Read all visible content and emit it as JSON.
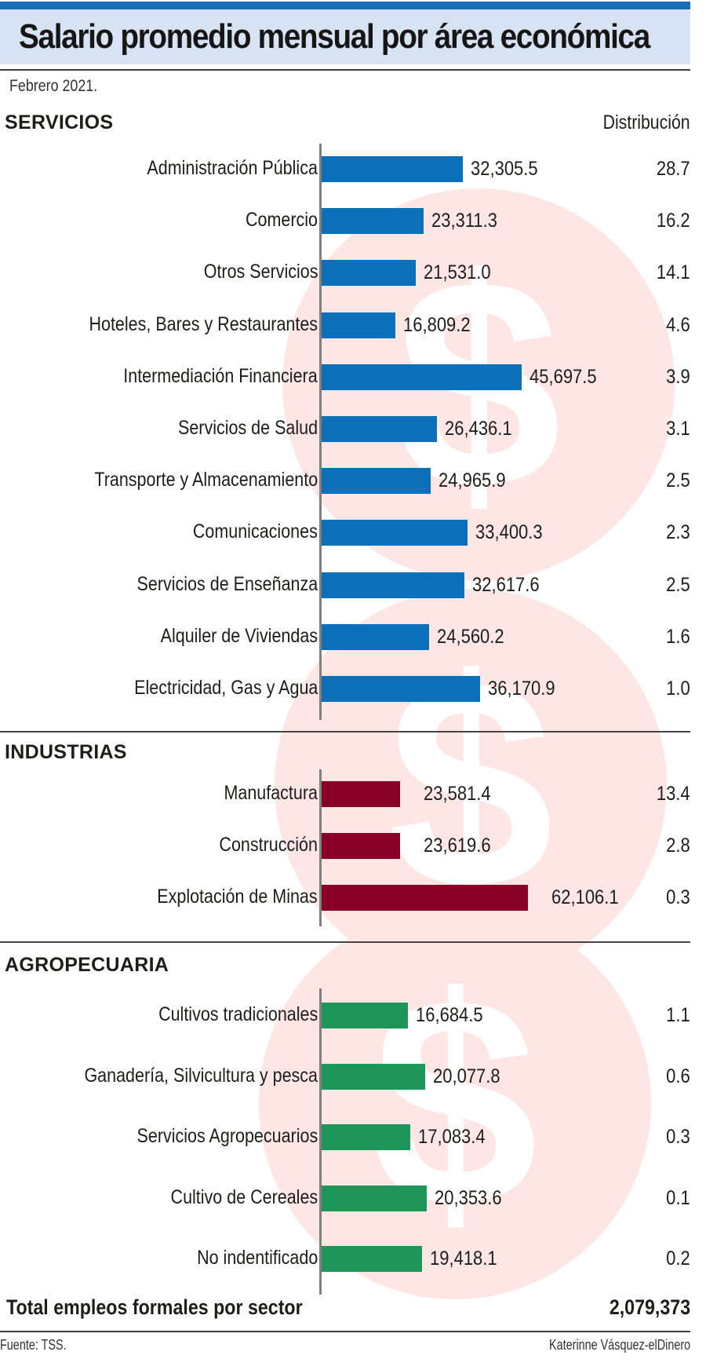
{
  "header": {
    "title": "Salario promedio mensual por área económica",
    "subtitle": "Febrero 2021.",
    "distribution_header": "Distribución"
  },
  "colors": {
    "servicios": "#0b6fba",
    "industrias": "#870025",
    "agropecuaria": "#1e9659",
    "title_band": "#d7e3f3",
    "top_stripe": "#1a70b8",
    "watermark": "#fde6e3"
  },
  "chart_data": {
    "type": "bar",
    "orientation": "horizontal",
    "title": "Salario promedio mensual por área económica",
    "subtitle": "Febrero 2021.",
    "value_label": "Salario promedio mensual",
    "extra_column_label": "Distribución",
    "groups": [
      {
        "name": "SERVICIOS",
        "color": "#0b6fba",
        "categories": [
          "Administración Pública",
          "Comercio",
          "Otros Servicios",
          "Hoteles, Bares y Restaurantes",
          "Intermediación Financiera",
          "Servicios de Salud",
          "Transporte y Almacenamiento",
          "Comunicaciones",
          "Servicios de Enseñanza",
          "Alquiler de Viviendas",
          "Electricidad, Gas y Agua"
        ],
        "values": [
          32305.5,
          23311.3,
          21531.0,
          16809.2,
          45697.5,
          26436.1,
          24965.9,
          33400.3,
          32617.6,
          24560.2,
          36170.9
        ],
        "value_labels": [
          "32,305.5",
          "23,311.3",
          "21,531.0",
          "16,809.2",
          "45,697.5",
          "26,436.1",
          "24,965.9",
          "33,400.3",
          "32,617.6",
          "24,560.2",
          "36,170.9"
        ],
        "distribution": [
          "28.7",
          "16.2",
          "14.1",
          "4.6",
          "3.9",
          "3.1",
          "2.5",
          "2.3",
          "2.5",
          "1.6",
          "1.0"
        ]
      },
      {
        "name": "INDUSTRIAS",
        "color": "#870025",
        "categories": [
          "Manufactura",
          "Construcción",
          "Explotación de Minas"
        ],
        "values": [
          23581.4,
          23619.6,
          62106.1
        ],
        "value_labels": [
          "23,581.4",
          "23,619.6",
          "62,106.1"
        ],
        "distribution": [
          "13.4",
          "2.8",
          "0.3"
        ]
      },
      {
        "name": "AGROPECUARIA",
        "color": "#1e9659",
        "categories": [
          "Cultivos tradicionales",
          "Ganadería, Silvicultura y pesca",
          "Servicios Agropecuarios",
          "Cultivo de Cereales",
          "No indentificado"
        ],
        "values": [
          16684.5,
          20077.8,
          17083.4,
          20353.6,
          19418.1
        ],
        "value_labels": [
          "16,684.5",
          "20,077.8",
          "17,083.4",
          "20,353.6",
          "19,418.1"
        ],
        "distribution": [
          "1.1",
          "0.6",
          "0.3",
          "0.1",
          "0.2"
        ]
      }
    ],
    "grid": false,
    "legend": "none"
  },
  "total": {
    "label": "Total empleos formales por sector",
    "value": "2,079,373"
  },
  "footer": {
    "source": "Fuente: TSS.",
    "credit": "Katerinne Vásquez-elDinero"
  }
}
